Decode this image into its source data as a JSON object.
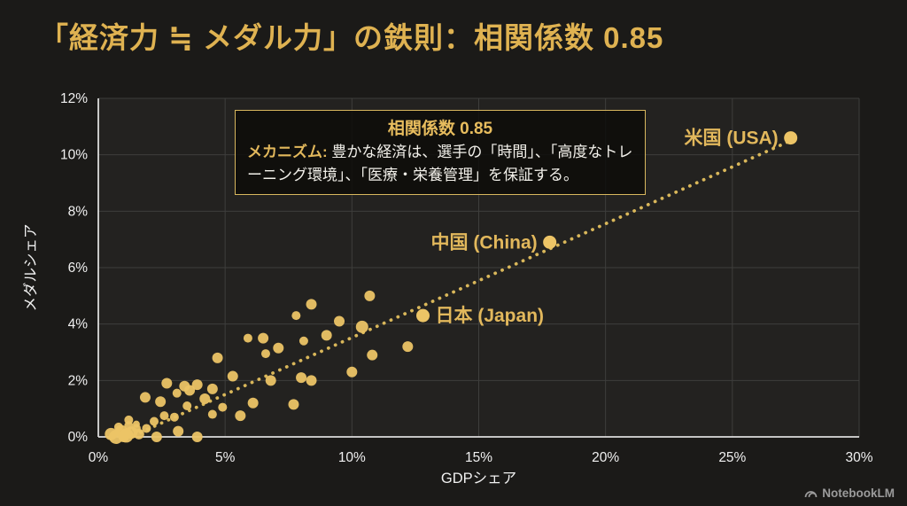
{
  "title": "「経済力 ≒ メダル力」の鉄則：相関係数 0.85",
  "annotation": {
    "title": "相関係数 0.85",
    "mechanism_label": "メカニズム:",
    "mechanism_text": " 豊かな経済は、選手の「時間」、「高度なトレーニング環境」、「医療・栄養管理」を保証する。"
  },
  "watermark": {
    "label": "NotebookLM"
  },
  "chart_data": {
    "type": "scatter",
    "title": "「経済力 ≒ メダル力」の鉄則：相関係数 0.85",
    "xlabel": "GDPシェア",
    "ylabel": "メダルシェア",
    "xlim": [
      0,
      30
    ],
    "ylim": [
      0,
      12
    ],
    "x_tick_values": [
      0,
      5,
      10,
      15,
      20,
      25,
      30
    ],
    "x_tick_labels": [
      "0%",
      "5%",
      "10%",
      "15%",
      "20%",
      "25%",
      "30%"
    ],
    "y_tick_values": [
      0,
      2,
      4,
      6,
      8,
      10,
      12
    ],
    "y_tick_labels": [
      "0%",
      "2%",
      "4%",
      "6%",
      "8%",
      "10%",
      "12%"
    ],
    "grid": true,
    "correlation": 0.85,
    "legend": "none",
    "labeled_points": [
      {
        "label": "米国 (USA)",
        "x": 27.3,
        "y": 10.6,
        "label_side": "left"
      },
      {
        "label": "中国 (China)",
        "x": 17.8,
        "y": 6.9,
        "label_side": "left"
      },
      {
        "label": "日本 (Japan)",
        "x": 12.8,
        "y": 4.3,
        "label_side": "right"
      }
    ],
    "trendline": {
      "style": "dotted",
      "start": [
        1.4,
        0.05
      ],
      "end": [
        27.3,
        10.5
      ]
    },
    "points": [
      [
        0.5,
        0.1,
        7
      ],
      [
        0.7,
        0.0,
        8
      ],
      [
        0.9,
        0.2,
        7
      ],
      [
        1.1,
        0.05,
        8
      ],
      [
        1.3,
        0.15,
        7
      ],
      [
        0.8,
        0.35,
        5
      ],
      [
        1.2,
        0.4,
        5
      ],
      [
        1.0,
        0.0,
        6
      ],
      [
        1.6,
        0.1,
        6
      ],
      [
        1.5,
        0.3,
        5
      ],
      [
        1.2,
        0.6,
        5
      ],
      [
        1.5,
        0.45,
        4
      ],
      [
        1.85,
        1.4,
        6
      ],
      [
        1.9,
        0.3,
        5
      ],
      [
        2.2,
        0.55,
        5
      ],
      [
        2.3,
        0.0,
        6
      ],
      [
        2.45,
        1.25,
        6
      ],
      [
        2.6,
        0.75,
        5
      ],
      [
        2.7,
        1.9,
        6
      ],
      [
        3.0,
        0.7,
        5
      ],
      [
        3.1,
        1.55,
        5
      ],
      [
        3.15,
        0.2,
        6
      ],
      [
        3.4,
        1.8,
        6
      ],
      [
        3.6,
        1.65,
        6
      ],
      [
        3.5,
        1.1,
        5
      ],
      [
        3.9,
        1.85,
        6
      ],
      [
        3.9,
        0.0,
        6
      ],
      [
        4.2,
        1.35,
        6
      ],
      [
        4.5,
        1.7,
        6
      ],
      [
        4.5,
        0.8,
        5
      ],
      [
        4.7,
        2.8,
        6
      ],
      [
        4.9,
        1.05,
        5
      ],
      [
        5.3,
        2.15,
        6
      ],
      [
        5.6,
        0.75,
        6
      ],
      [
        5.9,
        3.5,
        5
      ],
      [
        6.1,
        1.2,
        6
      ],
      [
        6.5,
        3.5,
        6
      ],
      [
        6.6,
        2.95,
        5
      ],
      [
        6.8,
        2.0,
        6
      ],
      [
        7.1,
        3.15,
        6
      ],
      [
        7.7,
        1.15,
        6
      ],
      [
        7.8,
        4.3,
        5
      ],
      [
        8.0,
        2.1,
        6
      ],
      [
        8.4,
        2.0,
        6
      ],
      [
        8.4,
        4.7,
        6
      ],
      [
        8.1,
        3.4,
        5
      ],
      [
        9.0,
        3.6,
        6
      ],
      [
        9.5,
        4.1,
        6
      ],
      [
        10.0,
        2.3,
        6
      ],
      [
        10.4,
        3.9,
        7
      ],
      [
        10.7,
        5.0,
        6
      ],
      [
        10.8,
        2.9,
        6
      ],
      [
        12.2,
        3.2,
        6
      ]
    ],
    "colors": {
      "background": "#1b1a18",
      "plot_background": "#232220",
      "point": "#ecc466",
      "trend": "#d9b75a",
      "grid": "#3e3e3c",
      "spine": "#dcdcdc",
      "tick_text": "#f0f0f0",
      "label_text": "#e2b85c",
      "title_text": "#dfb251"
    }
  }
}
